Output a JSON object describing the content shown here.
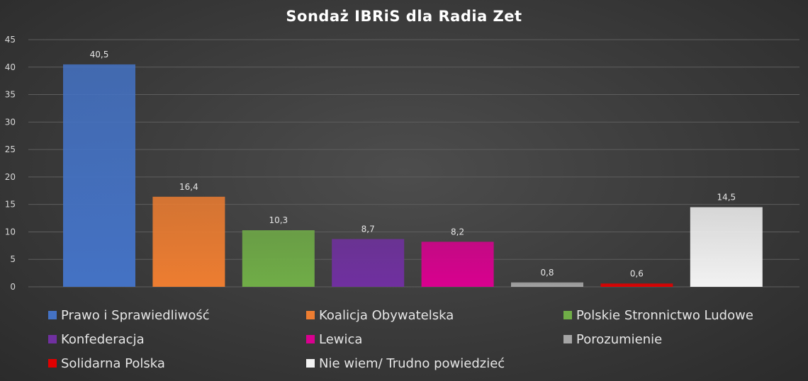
{
  "chart_data": {
    "type": "bar",
    "title": "Sondaż IBRiS dla Radia Zet",
    "xlabel": "",
    "ylabel": "",
    "ylim": [
      0,
      45
    ],
    "yticks": [
      0,
      5,
      10,
      15,
      20,
      25,
      30,
      35,
      40,
      45
    ],
    "grid": true,
    "legend_position": "bottom",
    "series": [
      {
        "name": "Prawo i Sprawiedliwość",
        "value": 40.5,
        "label": "40,5",
        "color": "#4472c4"
      },
      {
        "name": "Koalicja Obywatelska",
        "value": 16.4,
        "label": "16,4",
        "color": "#ed7d31"
      },
      {
        "name": "Polskie Stronnictwo Ludowe",
        "value": 10.3,
        "label": "10,3",
        "color": "#70ad47"
      },
      {
        "name": "Konfederacja",
        "value": 8.7,
        "label": "8,7",
        "color": "#7030a0"
      },
      {
        "name": "Lewica",
        "value": 8.2,
        "label": "8,2",
        "color": "#d9008f"
      },
      {
        "name": "Porozumienie",
        "value": 0.8,
        "label": "0,8",
        "color": "#a5a5a5"
      },
      {
        "name": "Solidarna Polska",
        "value": 0.6,
        "label": "0,6",
        "color": "#e00000"
      },
      {
        "name": "Nie wiem/ Trudno powiedzieć",
        "value": 14.5,
        "label": "14,5",
        "color": "#f2f2f2"
      }
    ]
  }
}
